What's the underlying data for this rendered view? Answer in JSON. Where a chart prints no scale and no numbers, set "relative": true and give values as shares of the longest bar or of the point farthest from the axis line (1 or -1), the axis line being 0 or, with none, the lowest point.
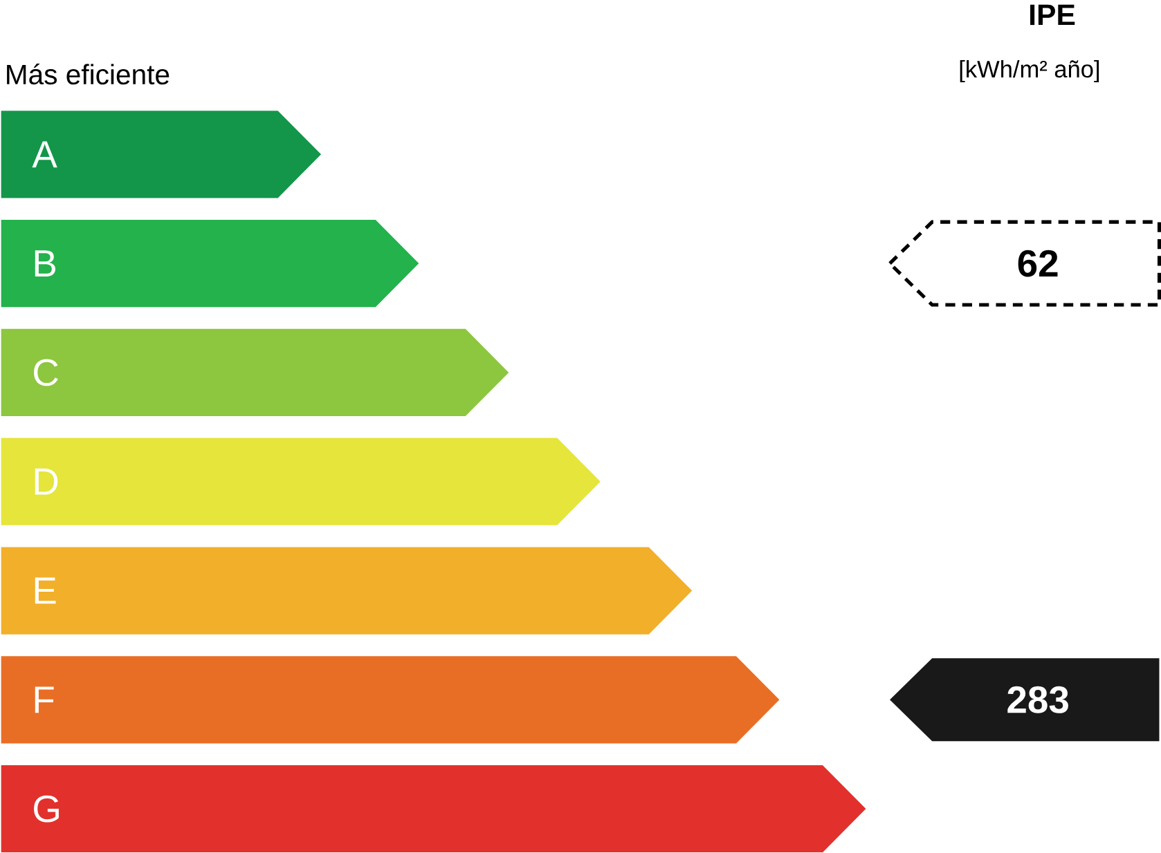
{
  "chart_data": {
    "type": "bar",
    "orientation": "horizontal",
    "relative": true,
    "title": "IPE",
    "subtitle": "[kWh/m² año]",
    "categories": [
      "A",
      "B",
      "C",
      "D",
      "E",
      "F",
      "G"
    ],
    "values": [
      0.37,
      0.483,
      0.587,
      0.693,
      0.799,
      0.9,
      1.0
    ],
    "colors": [
      "#13964a",
      "#23b24b",
      "#8dc63f",
      "#e5e53b",
      "#f2af2a",
      "#e96e25",
      "#e2312d"
    ],
    "annotations": [
      "Más eficiente",
      "62",
      "283"
    ]
  }
}
